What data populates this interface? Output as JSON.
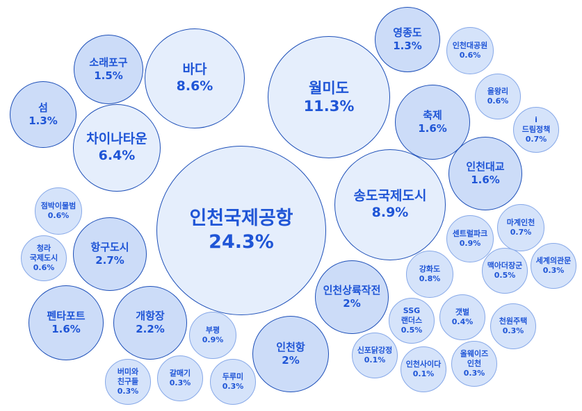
{
  "chart_data": {
    "type": "bubble",
    "title": "",
    "unit": "%",
    "items": [
      {
        "label": [
          "인천국제공항"
        ],
        "value": 24.3
      },
      {
        "label": [
          "월미도"
        ],
        "value": 11.3
      },
      {
        "label": [
          "바다"
        ],
        "value": 8.6
      },
      {
        "label": [
          "송도국제도시"
        ],
        "value": 8.9
      },
      {
        "label": [
          "차이나타운"
        ],
        "value": 6.4
      },
      {
        "label": [
          "항구도시"
        ],
        "value": 2.7
      },
      {
        "label": [
          "개항장"
        ],
        "value": 2.2
      },
      {
        "label": [
          "인천상륙작전"
        ],
        "value": 2
      },
      {
        "label": [
          "인천항"
        ],
        "value": 2
      },
      {
        "label": [
          "펜타포트"
        ],
        "value": 1.6
      },
      {
        "label": [
          "축제"
        ],
        "value": 1.6
      },
      {
        "label": [
          "인천대교"
        ],
        "value": 1.6
      },
      {
        "label": [
          "영종도"
        ],
        "value": 1.3
      },
      {
        "label": [
          "섬"
        ],
        "value": 1.3
      },
      {
        "label": [
          "소래포구"
        ],
        "value": 1.5
      },
      {
        "label": [
          "센트럴파크"
        ],
        "value": 0.9
      },
      {
        "label": [
          "부평"
        ],
        "value": 0.9
      },
      {
        "label": [
          "강화도"
        ],
        "value": 0.8
      },
      {
        "label": [
          "마계인천"
        ],
        "value": 0.7
      },
      {
        "label": [
          "i",
          "드림정책"
        ],
        "value": 0.7
      },
      {
        "label": [
          "인천대공원"
        ],
        "value": 0.6
      },
      {
        "label": [
          "을왕리"
        ],
        "value": 0.6
      },
      {
        "label": [
          "점박이물범"
        ],
        "value": 0.6
      },
      {
        "label": [
          "청라",
          "국제도시"
        ],
        "value": 0.6
      },
      {
        "label": [
          "맥아더장군"
        ],
        "value": 0.5
      },
      {
        "label": [
          "SSG",
          "랜더스"
        ],
        "value": 0.5
      },
      {
        "label": [
          "갯벌"
        ],
        "value": 0.4
      },
      {
        "label": [
          "세계의관문"
        ],
        "value": 0.3
      },
      {
        "label": [
          "천원주택"
        ],
        "value": 0.3
      },
      {
        "label": [
          "올웨이즈",
          "인천"
        ],
        "value": 0.3
      },
      {
        "label": [
          "신포닭강정"
        ],
        "value": 0.1
      },
      {
        "label": [
          "인천사이다"
        ],
        "value": 0.1
      },
      {
        "label": [
          "버미와",
          "친구들"
        ],
        "value": 0.3
      },
      {
        "label": [
          "갈매기"
        ],
        "value": 0.3
      },
      {
        "label": [
          "두루미"
        ],
        "value": 0.3
      }
    ],
    "colors": {
      "text": "#1f55d6",
      "stroke": "#1d4fb8",
      "fill_large": "#e5eefc",
      "fill_mid": "#ccdcf8",
      "fill_small": "#d5e3fa"
    }
  }
}
